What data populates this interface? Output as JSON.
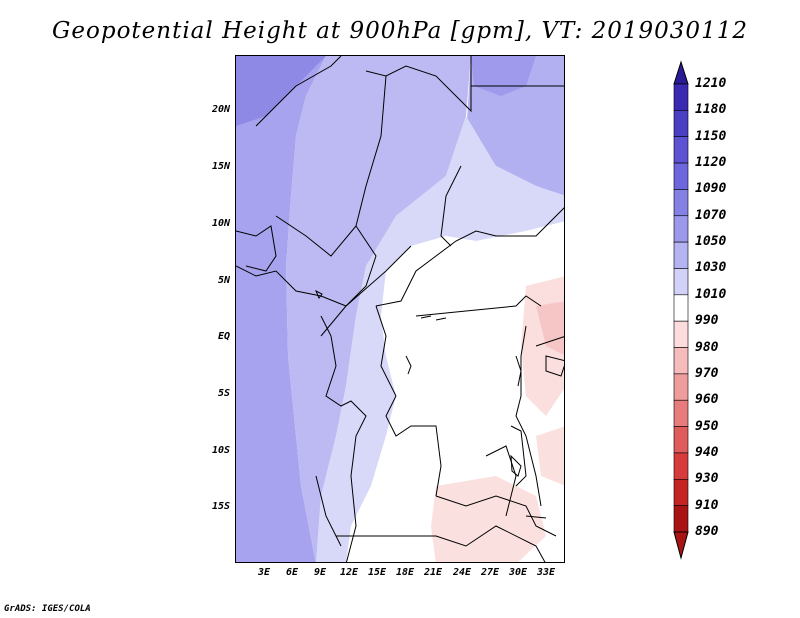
{
  "title": "Geopotential Height at 900hPa [gpm], VT: 2019030112",
  "credit": "GrADS: IGES/COLA",
  "lat_labels": [
    "20N",
    "15N",
    "10N",
    "5N",
    "EQ",
    "5S",
    "10S",
    "15S"
  ],
  "lon_labels": [
    "3E",
    "6E",
    "9E",
    "12E",
    "15E",
    "18E",
    "21E",
    "24E",
    "27E",
    "30E",
    "33E"
  ],
  "colorbar": {
    "labels": [
      "1210",
      "1180",
      "1150",
      "1120",
      "1090",
      "1070",
      "1050",
      "1030",
      "1010",
      "990",
      "980",
      "970",
      "960",
      "950",
      "940",
      "930",
      "910",
      "890"
    ],
    "colors": [
      "#2a1a96",
      "#3a2ab2",
      "#4a3ec4",
      "#5c52d2",
      "#6e66dc",
      "#8580e4",
      "#9c98ec",
      "#b5b3f2",
      "#d2d2f8",
      "#ffffff",
      "#fcdcdc",
      "#f6bcbc",
      "#ee9c9c",
      "#e87c7c",
      "#e05c5c",
      "#d63c3c",
      "#c42424",
      "#a81414"
    ]
  }
}
